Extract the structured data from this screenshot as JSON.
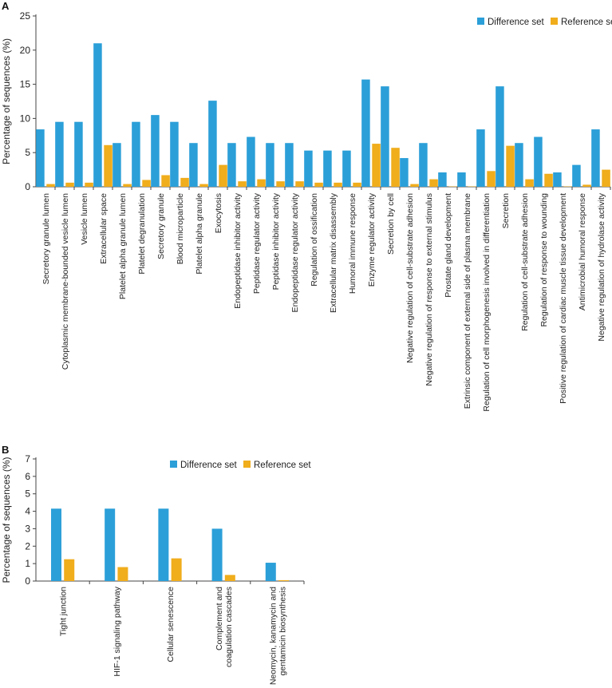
{
  "colors": {
    "difference": "#2b9fd8",
    "reference": "#f0ad1c",
    "axis": "#444444"
  },
  "chart_data": [
    {
      "type": "bar",
      "panel_label": "A",
      "ylabel": "Percentage of sequences (%)",
      "xlabel": "",
      "ylim": [
        0,
        25
      ],
      "yticks": [
        0,
        5,
        10,
        15,
        20,
        25
      ],
      "legend_position": "top-right",
      "categories": [
        "Secretory granule lumen",
        "Cytoplasmic membrane-bounded vesicle lumen",
        "Vesicle lumen",
        "Extracellular space",
        "Platelet alpha granule lumen",
        "Platelet degranulation",
        "Secretory granule",
        "Blood microparticle",
        "Platelet alpha granule",
        "Exocytosis",
        "Endopeptidase inhibitor activity",
        "Peptidase regulator activity",
        "Peptidase inhibitor activity",
        "Endopeptidase regulator activity",
        "Regulation of ossification",
        "Extracellular matrix disassembly",
        "Humoral immune response",
        "Enzyme regulator activity",
        "Secretion by cell",
        "Negative regulation of cell-substrate adhesion",
        "Negative regulation of response to external stimulus",
        "Prostate gland development",
        "Extrinsic component of external side of plasma membrane",
        "Regulation of cell morphogenesis involved in differentiation",
        "Secretion",
        "Regulation of cell-substrate adhesion",
        "Regulation of response to wounding",
        "Positive regulation of cardiac muscle tissue development",
        "Antimicrobial humoral response",
        "Negative regulation of hydrolase activity"
      ],
      "series": [
        {
          "name": "Difference set",
          "values": [
            8.4,
            9.5,
            9.5,
            21.0,
            6.4,
            9.5,
            10.5,
            9.5,
            6.4,
            12.6,
            6.4,
            7.3,
            6.4,
            6.4,
            5.3,
            5.3,
            5.3,
            15.7,
            14.7,
            4.2,
            6.4,
            2.1,
            2.1,
            8.4,
            14.7,
            6.4,
            7.3,
            2.1,
            3.2,
            8.4
          ]
        },
        {
          "name": "Reference set",
          "values": [
            0.4,
            0.6,
            0.6,
            6.1,
            0.4,
            1.0,
            1.7,
            1.3,
            0.4,
            3.2,
            0.8,
            1.1,
            0.8,
            0.8,
            0.6,
            0.6,
            0.6,
            6.3,
            5.7,
            0.4,
            1.1,
            0.05,
            0.05,
            2.3,
            6.0,
            1.1,
            1.9,
            0.05,
            0.3,
            2.5
          ]
        }
      ]
    },
    {
      "type": "bar",
      "panel_label": "B",
      "ylabel": "Percentage of sequences (%)",
      "xlabel": "",
      "ylim": [
        0,
        7
      ],
      "yticks": [
        0,
        1,
        2,
        3,
        4,
        5,
        6,
        7
      ],
      "legend_position": "top-center",
      "categories": [
        [
          "Tight junction"
        ],
        [
          "HIF-1 signaling pathway"
        ],
        [
          "Cellular senescence"
        ],
        [
          "Complement and",
          "coagulation cascades"
        ],
        [
          "Neomycin, kanamycin and",
          "gentamicin biosynthesis"
        ]
      ],
      "series": [
        {
          "name": "Difference set",
          "values": [
            4.15,
            4.15,
            4.15,
            3.0,
            1.05
          ]
        },
        {
          "name": "Reference set",
          "values": [
            1.25,
            0.8,
            1.3,
            0.35,
            0.05
          ]
        }
      ]
    }
  ]
}
